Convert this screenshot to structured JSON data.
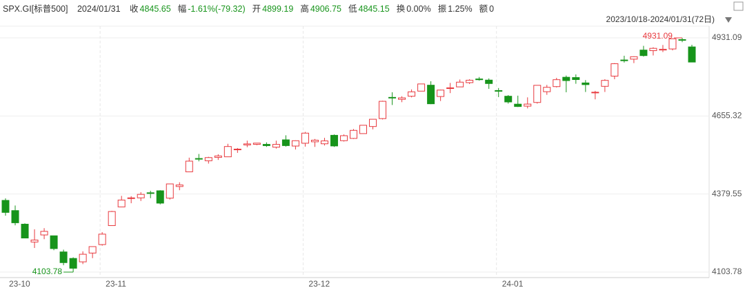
{
  "header": {
    "symbol": "SPX.GI[标普500]",
    "date": "2024/01/31",
    "fields": [
      {
        "label": "收",
        "value": "4845.65"
      },
      {
        "label": "幅",
        "value": "-1.61%(-79.32)"
      },
      {
        "label": "开",
        "value": "4899.19"
      },
      {
        "label": "高",
        "value": "4906.75"
      },
      {
        "label": "低",
        "value": "4845.15"
      },
      {
        "label": "换",
        "value": "0.00%"
      },
      {
        "label": "振",
        "value": "1.25%"
      },
      {
        "label": "额",
        "value": "0"
      }
    ]
  },
  "chart_data": {
    "type": "candlestick",
    "subtitle": "2023/10/18-2024/01/31(72日)",
    "categories": [
      "23-10",
      null,
      null,
      null,
      null,
      null,
      null,
      null,
      null,
      null,
      "23-11",
      null,
      null,
      null,
      null,
      null,
      null,
      null,
      null,
      null,
      null,
      null,
      null,
      null,
      null,
      null,
      null,
      null,
      null,
      null,
      null,
      "23-12",
      null,
      null,
      null,
      null,
      null,
      null,
      null,
      null,
      null,
      null,
      null,
      null,
      null,
      null,
      null,
      null,
      null,
      null,
      null,
      "24-01",
      null,
      null,
      null,
      null,
      null,
      null,
      null,
      null,
      null,
      null,
      null,
      null,
      null,
      null,
      null,
      null,
      null,
      null,
      null,
      null
    ],
    "open": [
      4357,
      4321,
      4273,
      4210,
      4235,
      4232,
      4175,
      4152,
      4140,
      4171,
      4201,
      4268,
      4334,
      4364,
      4366,
      4384,
      4391,
      4365,
      4406,
      4458,
      4505,
      4497,
      4509,
      4511,
      4538,
      4553,
      4555,
      4555,
      4545,
      4571,
      4549,
      4559,
      4564,
      4557,
      4587,
      4568,
      4576,
      4593,
      4618,
      4646,
      4721,
      4714,
      4725,
      4743,
      4764,
      4724,
      4753,
      4758,
      4773,
      4786,
      4782,
      4745,
      4725,
      4697,
      4690,
      4703,
      4741,
      4759,
      4792,
      4791,
      4772,
      4739,
      4760,
      4796,
      4853,
      4856,
      4888,
      4886,
      4888,
      4892,
      4925,
      4899.19
    ],
    "high": [
      4364,
      4339,
      4276,
      4255,
      4259,
      4232,
      4183,
      4156,
      4177,
      4195,
      4245,
      4320,
      4373,
      4372,
      4386,
      4391,
      4393,
      4415,
      4421,
      4508,
      4521,
      4511,
      4520,
      4557,
      4542,
      4568,
      4560,
      4562,
      4568,
      4587,
      4569,
      4599,
      4574,
      4578,
      4590,
      4590,
      4609,
      4623,
      4643,
      4709,
      4739,
      4725,
      4749,
      4768,
      4778,
      4748,
      4772,
      4784,
      4785,
      4793,
      4788,
      4754,
      4729,
      4727,
      4721,
      4764,
      4765,
      4790,
      4798,
      4802,
      4782,
      4744,
      4785,
      4842,
      4868,
      4866,
      4903,
      4898,
      4906,
      4929,
      4931.09,
      4906.75
    ],
    "low": [
      4303,
      4269,
      4223,
      4189,
      4220,
      4181,
      4128,
      4103.78,
      4132,
      4153,
      4197,
      4268,
      4334,
      4347,
      4355,
      4365,
      4343,
      4360,
      4393,
      4458,
      4495,
      4487,
      4500,
      4511,
      4525,
      4545,
      4552,
      4546,
      4540,
      4547,
      4537,
      4547,
      4546,
      4551,
      4546,
      4565,
      4574,
      4593,
      4608,
      4643,
      4694,
      4704,
      4721,
      4743,
      4697,
      4708,
      4736,
      4758,
      4768,
      4780,
      4751,
      4722,
      4699,
      4687,
      4682,
      4699,
      4730,
      4756,
      4739,
      4769,
      4740,
      4714,
      4740,
      4785,
      4844,
      4842,
      4865,
      4869,
      4881,
      4887,
      4916,
      4845.15
    ],
    "close": [
      4314.6,
      4278,
      4224.16,
      4217.04,
      4247.68,
      4186.77,
      4137.23,
      4117.37,
      4166.82,
      4193.8,
      4237.86,
      4317.78,
      4358.34,
      4365.98,
      4378.38,
      4382.78,
      4347.35,
      4415.24,
      4411.55,
      4495.7,
      4502.88,
      4508.24,
      4514.02,
      4547.38,
      4538.19,
      4556.62,
      4559.34,
      4550.43,
      4554.89,
      4550.58,
      4567.8,
      4594.63,
      4569.78,
      4567.18,
      4549.34,
      4585.59,
      4604.37,
      4622.44,
      4643.7,
      4707.09,
      4719.55,
      4719.19,
      4740.56,
      4768.37,
      4698.35,
      4746.75,
      4754.63,
      4774.75,
      4781.58,
      4783.35,
      4769.83,
      4742.83,
      4704.81,
      4688.68,
      4697.24,
      4763.54,
      4756.5,
      4783.45,
      4780.24,
      4783.83,
      4765.98,
      4739.21,
      4780.94,
      4839.81,
      4850.43,
      4864.6,
      4868.55,
      4894.16,
      4890.97,
      4927.93,
      4924.97,
      4845.65
    ],
    "up_color": "#e8383d",
    "down_color": "#17941b",
    "ylim": [
      4084.31,
      4972.45
    ],
    "yticks": [
      4103.78,
      4379.55,
      4655.32,
      4931.09
    ],
    "grid": true,
    "annotations": [
      "4931.09",
      "4103.78"
    ]
  }
}
